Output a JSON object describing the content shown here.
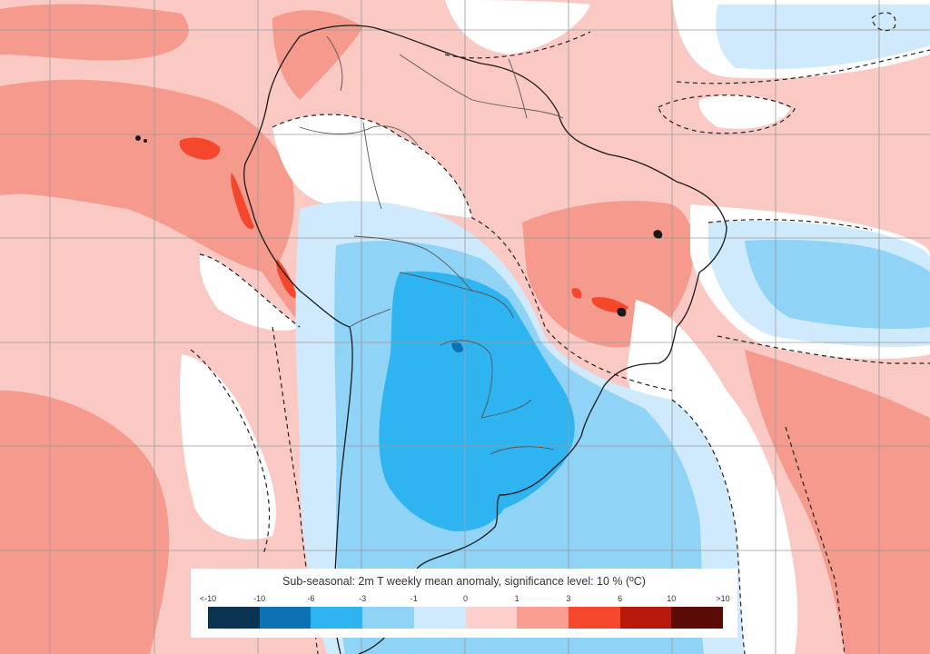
{
  "map": {
    "projection": "regular lat-lon grid",
    "region": "South America",
    "gridlines": "on",
    "colors": {
      "ocean_base": "#fbc9c3",
      "coastline": "#1a1a1a",
      "borders": "#555555",
      "gridline": "#9a9a9a",
      "significance_contour": "#222222"
    }
  },
  "legend": {
    "title": "Sub-seasonal: 2m T weekly mean anomaly, significance level: 10 % (ºC)",
    "tick_labels": [
      "<-10",
      "-10",
      "-6",
      "-3",
      "-1",
      "0",
      "1",
      "3",
      "6",
      "10",
      ">10"
    ],
    "colors": [
      "#0b3352",
      "#0b73b4",
      "#2fb4f2",
      "#8fd3f7",
      "#cfeafc",
      "#ffd0cb",
      "#f99e91",
      "#f5472c",
      "#b8170b",
      "#5a0b05"
    ]
  }
}
